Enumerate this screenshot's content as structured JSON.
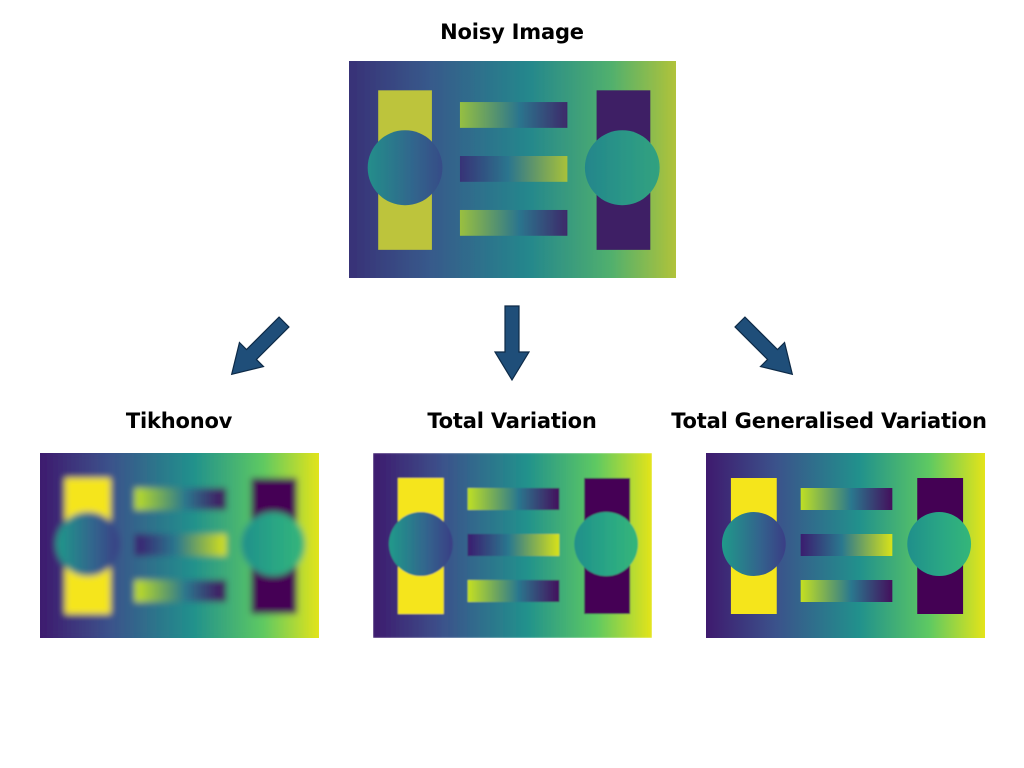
{
  "source": {
    "title": "Noisy Image"
  },
  "methods": [
    {
      "title": "Tikhonov"
    },
    {
      "title": "Total Variation"
    },
    {
      "title": "Total Generalised Variation"
    }
  ],
  "colors": {
    "arrow": "#1f4e79",
    "arrow_outline": "#0d2a47",
    "viridis_dark": "#440154",
    "viridis_blue": "#3b528b",
    "viridis_teal": "#21918c",
    "viridis_green": "#5ec962",
    "viridis_yellow": "#fde725"
  }
}
